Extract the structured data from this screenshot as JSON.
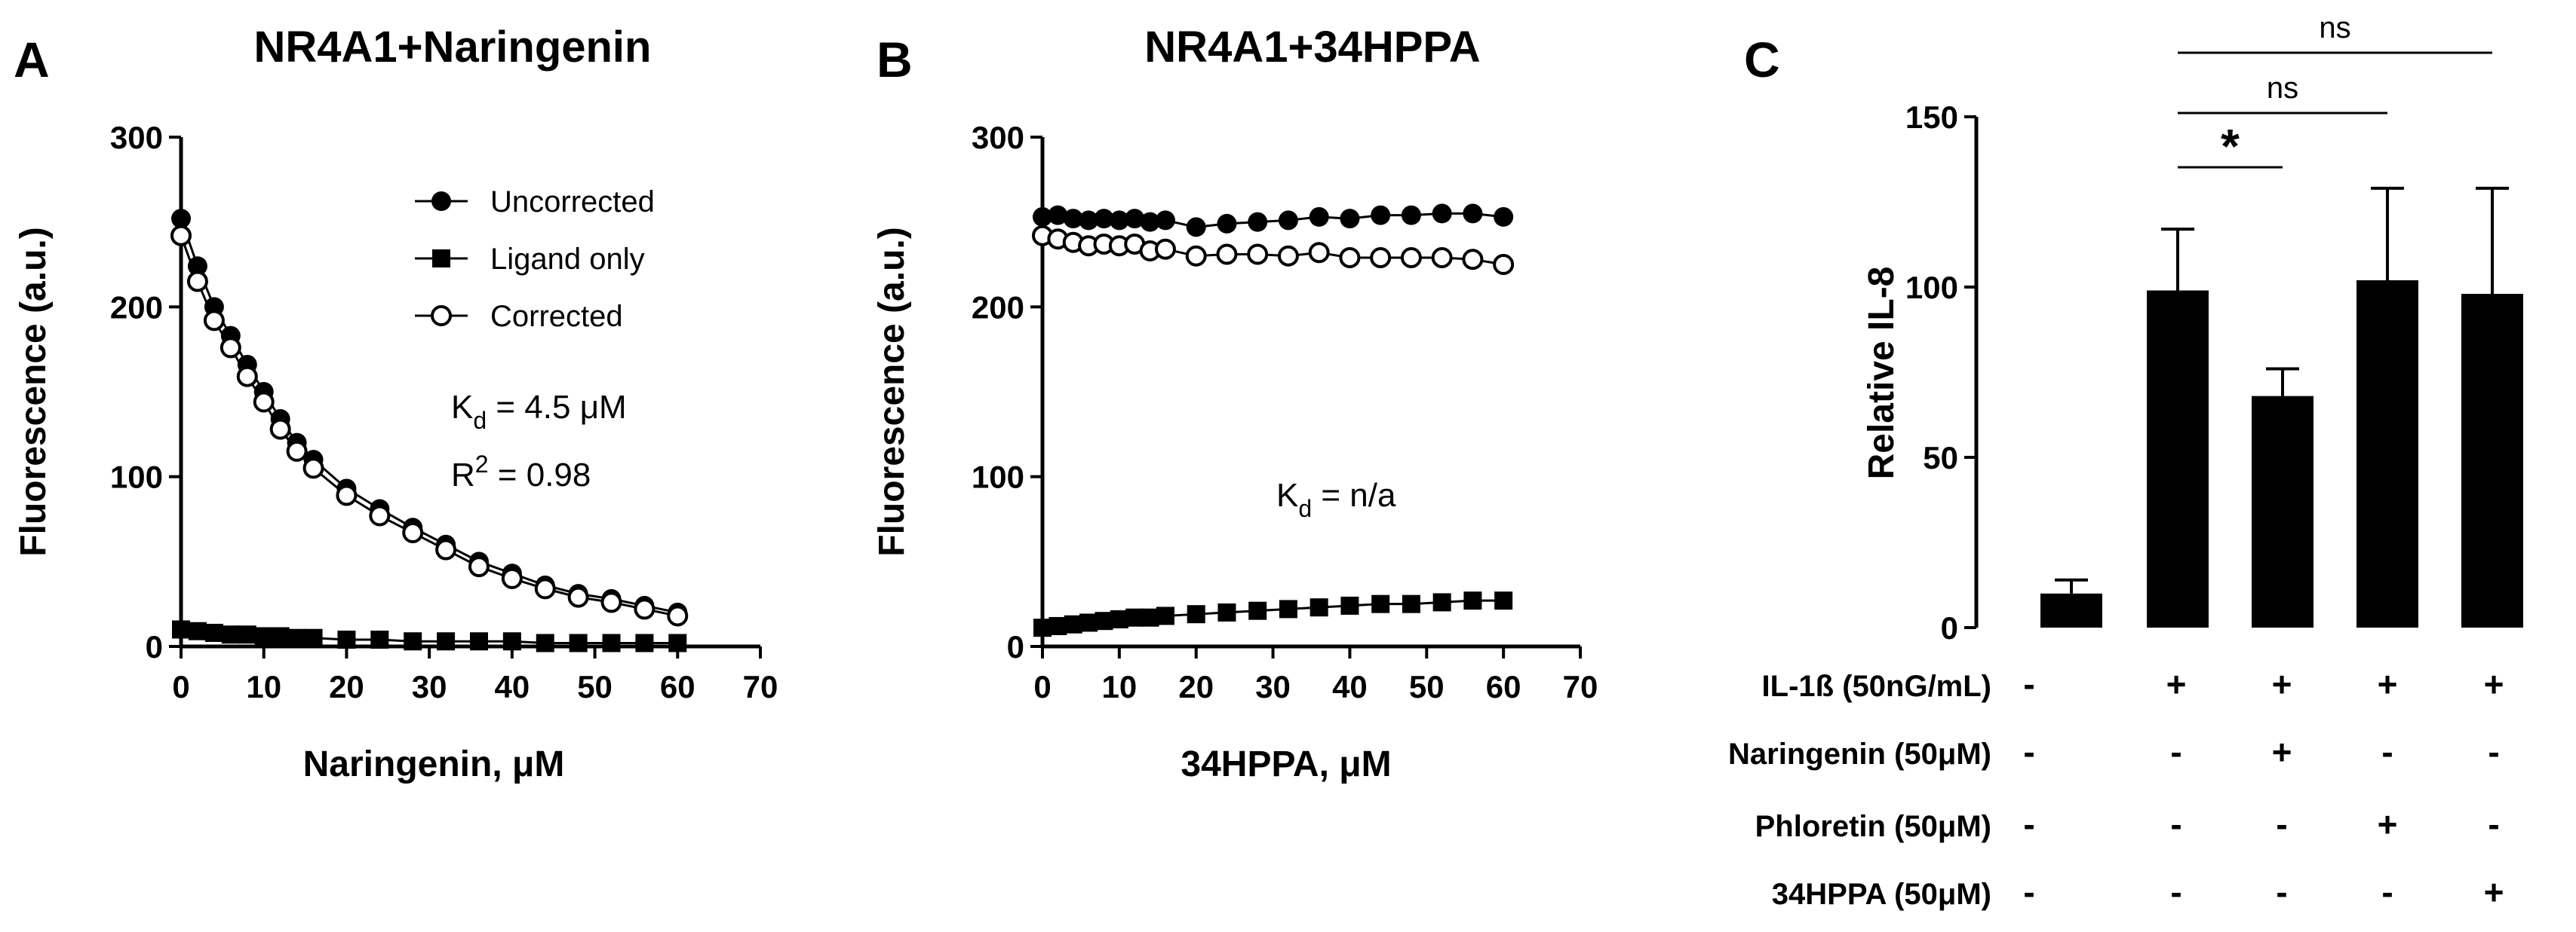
{
  "chart_data": [
    {
      "panel": "A",
      "type": "scatter",
      "title": "NR4A1+Naringenin",
      "xlabel": "Naringenin, μM",
      "ylabel": "Fluorescence (a.u.)",
      "xlim": [
        0,
        70
      ],
      "ylim": [
        0,
        300
      ],
      "xticks": [
        0,
        10,
        20,
        30,
        40,
        50,
        60,
        70
      ],
      "yticks": [
        0,
        100,
        200,
        300
      ],
      "legend_position": "top-right",
      "annotations": {
        "kd_label": "K",
        "kd_sub": "d",
        "kd_value": " = 4.5 μM",
        "r2_label": "R",
        "r2_sup": "2",
        "r2_value": " = 0.98"
      },
      "series": [
        {
          "name": "Uncorrected",
          "marker": "filled-circle",
          "x": [
            0,
            2,
            4,
            6,
            8,
            10,
            12,
            14,
            16,
            20,
            24,
            28,
            32,
            36,
            40,
            44,
            48,
            52,
            56,
            60
          ],
          "y": [
            252,
            224,
            200,
            183,
            166,
            150,
            134,
            120,
            110,
            93,
            81,
            70,
            60,
            50,
            43,
            36,
            31,
            28,
            24,
            20
          ]
        },
        {
          "name": "Ligand only",
          "marker": "filled-square",
          "x": [
            0,
            2,
            4,
            6,
            8,
            10,
            12,
            14,
            16,
            20,
            24,
            28,
            32,
            36,
            40,
            44,
            48,
            52,
            56,
            60
          ],
          "y": [
            10,
            9,
            8,
            7,
            7,
            6,
            6,
            5,
            5,
            4,
            4,
            3,
            3,
            3,
            3,
            2,
            2,
            2,
            2,
            2
          ]
        },
        {
          "name": "Corrected",
          "marker": "open-circle",
          "x": [
            0,
            2,
            4,
            6,
            8,
            10,
            12,
            14,
            16,
            20,
            24,
            28,
            32,
            36,
            40,
            44,
            48,
            52,
            56,
            60
          ],
          "y": [
            242,
            215,
            192,
            176,
            159,
            144,
            128,
            115,
            105,
            89,
            77,
            67,
            57,
            47,
            40,
            34,
            29,
            26,
            22,
            18
          ]
        }
      ]
    },
    {
      "panel": "B",
      "type": "scatter",
      "title": "NR4A1+34HPPA",
      "xlabel": "34HPPA, μM",
      "ylabel": "Fluorescence (a.u.)",
      "xlim": [
        0,
        70
      ],
      "ylim": [
        0,
        300
      ],
      "xticks": [
        0,
        10,
        20,
        30,
        40,
        50,
        60,
        70
      ],
      "yticks": [
        0,
        100,
        200,
        300
      ],
      "annotations": {
        "kd_label": "K",
        "kd_sub": "d",
        "kd_value": " = n/a"
      },
      "series": [
        {
          "name": "Uncorrected",
          "marker": "filled-circle",
          "x": [
            0,
            2,
            4,
            6,
            8,
            10,
            12,
            14,
            16,
            20,
            24,
            28,
            32,
            36,
            40,
            44,
            48,
            52,
            56,
            60
          ],
          "y": [
            253,
            254,
            252,
            251,
            252,
            251,
            252,
            250,
            251,
            247,
            249,
            250,
            251,
            253,
            252,
            254,
            254,
            255,
            255,
            253
          ]
        },
        {
          "name": "Ligand only",
          "marker": "filled-square",
          "x": [
            0,
            2,
            4,
            6,
            8,
            10,
            12,
            14,
            16,
            20,
            24,
            28,
            32,
            36,
            40,
            44,
            48,
            52,
            56,
            60
          ],
          "y": [
            11,
            12,
            13,
            14,
            15,
            16,
            17,
            17,
            18,
            19,
            20,
            21,
            22,
            23,
            24,
            25,
            25,
            26,
            27,
            27
          ]
        },
        {
          "name": "Corrected",
          "marker": "open-circle",
          "x": [
            0,
            2,
            4,
            6,
            8,
            10,
            12,
            14,
            16,
            20,
            24,
            28,
            32,
            36,
            40,
            44,
            48,
            52,
            56,
            60
          ],
          "y": [
            242,
            240,
            238,
            236,
            237,
            236,
            237,
            233,
            234,
            230,
            231,
            231,
            230,
            232,
            229,
            229,
            229,
            229,
            228,
            225
          ]
        }
      ]
    },
    {
      "panel": "C",
      "type": "bar",
      "ylabel": "Relative IL-8",
      "ylim": [
        0,
        150
      ],
      "yticks": [
        0,
        50,
        100,
        150
      ],
      "values": [
        10,
        99,
        68,
        102,
        98
      ],
      "errors": [
        4,
        18,
        8,
        27,
        31
      ],
      "significance": [
        {
          "from": 1,
          "to": 2,
          "label": "*"
        },
        {
          "from": 1,
          "to": 3,
          "label": "ns"
        },
        {
          "from": 1,
          "to": 4,
          "label": "ns"
        }
      ],
      "treatment_rows": [
        {
          "label": "IL-1ß (50nG/mL)",
          "signs": [
            "-",
            "+",
            "+",
            "+",
            "+"
          ]
        },
        {
          "label": "Naringenin (50μM)",
          "signs": [
            "-",
            "-",
            "+",
            "-",
            "-"
          ]
        },
        {
          "label": "Phloretin (50μM)",
          "signs": [
            "-",
            "-",
            "-",
            "+",
            "-"
          ]
        },
        {
          "label": "34HPPA (50μM)",
          "signs": [
            "-",
            "-",
            "-",
            "-",
            "+"
          ]
        }
      ]
    }
  ],
  "panels": {
    "a": "A",
    "b": "B",
    "c": "C"
  }
}
